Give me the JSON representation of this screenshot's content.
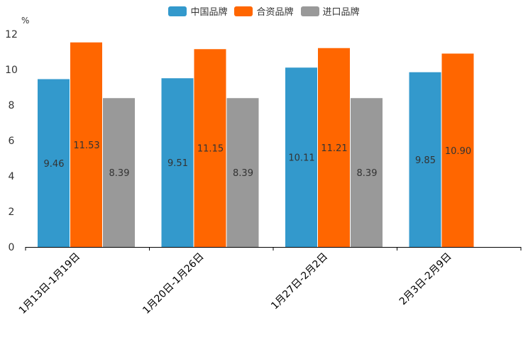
{
  "chart_data": {
    "type": "bar",
    "title": "",
    "ylabel": "%",
    "xlabel": "",
    "ylim": [
      0,
      12
    ],
    "yticks": [
      0,
      2,
      4,
      6,
      8,
      10,
      12
    ],
    "categories": [
      "1月13日-1月19日",
      "1月20日-1月26日",
      "1月27日-2月2日",
      "2月3日-2月9日"
    ],
    "series": [
      {
        "name": "中国品牌",
        "color": "#3399cc",
        "values": [
          9.46,
          9.51,
          10.11,
          9.85
        ],
        "labels": [
          "9.46",
          "9.51",
          "10.11",
          "9.85"
        ]
      },
      {
        "name": "合资品牌",
        "color": "#ff6600",
        "values": [
          11.53,
          11.15,
          11.21,
          10.9
        ],
        "labels": [
          "11.53",
          "11.15",
          "11.21",
          "10.90"
        ]
      },
      {
        "name": "进口品牌",
        "color": "#999999",
        "values": [
          8.39,
          8.39,
          8.39,
          null
        ],
        "labels": [
          "8.39",
          "8.39",
          "8.39",
          ""
        ]
      }
    ],
    "legend_position": "top-center",
    "grid": false
  }
}
